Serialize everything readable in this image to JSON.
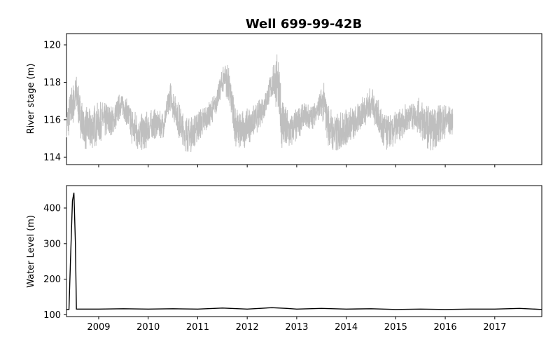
{
  "chart_data": {
    "title": "Well 699-99-42B",
    "type": "line",
    "shared_x": {
      "min": 2008.35,
      "max": 2017.95,
      "ticks": [
        2009,
        2010,
        2011,
        2012,
        2013,
        2014,
        2015,
        2016,
        2017
      ],
      "tick_labels": [
        "2009",
        "2010",
        "2011",
        "2012",
        "2013",
        "2014",
        "2015",
        "2016",
        "2017"
      ]
    },
    "panels": [
      {
        "ylabel": "River stage (m)",
        "ylim": [
          113.6,
          120.6
        ],
        "yticks": [
          114,
          116,
          118,
          120
        ],
        "ytick_labels": [
          "114",
          "116",
          "118",
          "120"
        ],
        "series": [
          {
            "color": "#bfbfbf",
            "style": "noisy-band",
            "x": [
              2008.35,
              2008.45,
              2008.55,
              2008.62,
              2008.7,
              2008.8,
              2008.95,
              2009.1,
              2009.3,
              2009.45,
              2009.55,
              2009.7,
              2009.85,
              2010.0,
              2010.15,
              2010.3,
              2010.45,
              2010.55,
              2010.7,
              2010.85,
              2011.0,
              2011.2,
              2011.35,
              2011.45,
              2011.55,
              2011.65,
              2011.75,
              2011.85,
              2012.0,
              2012.2,
              2012.35,
              2012.5,
              2012.6,
              2012.7,
              2012.85,
              2013.0,
              2013.15,
              2013.3,
              2013.45,
              2013.55,
              2013.65,
              2013.8,
              2014.0,
              2014.2,
              2014.35,
              2014.5,
              2014.6,
              2014.75,
              2014.9,
              2015.1,
              2015.3,
              2015.45,
              2015.6,
              2015.75,
              2015.9,
              2016.05,
              2016.15
            ],
            "low": [
              114.8,
              115.4,
              116.4,
              115.2,
              114.4,
              114.3,
              114.6,
              115.0,
              115.2,
              116.2,
              115.8,
              114.4,
              114.3,
              114.5,
              115.0,
              115.0,
              116.5,
              115.6,
              114.3,
              114.2,
              114.8,
              115.4,
              116.1,
              117.0,
              117.5,
              116.4,
              114.6,
              114.3,
              114.6,
              115.3,
              116.0,
              117.2,
              116.5,
              114.4,
              114.3,
              114.8,
              115.5,
              115.4,
              116.0,
              115.8,
              114.4,
              114.2,
              114.6,
              115.0,
              115.6,
              116.0,
              115.5,
              114.3,
              114.3,
              114.9,
              115.5,
              115.2,
              114.5,
              114.3,
              114.8,
              115.1,
              115.2
            ],
            "high": [
              116.5,
              117.8,
              118.4,
              117.5,
              116.8,
              116.6,
              116.9,
              117.0,
              116.7,
              117.6,
              117.2,
              116.6,
              116.3,
              116.5,
              116.6,
              116.4,
              118.0,
              117.4,
              116.4,
              116.1,
              116.5,
              116.9,
              117.4,
              118.2,
              119.4,
              118.6,
              116.9,
              116.5,
              116.6,
              116.9,
              117.6,
              118.6,
              119.8,
              117.5,
              116.4,
              116.6,
              116.9,
              116.8,
              117.4,
              118.0,
              116.8,
              116.3,
              116.6,
              116.8,
              117.3,
              117.8,
              117.4,
              116.4,
              116.3,
              116.6,
              117.1,
              117.2,
              116.9,
              116.6,
              116.9,
              116.8,
              116.6
            ]
          }
        ]
      },
      {
        "ylabel": "Water Level (m)",
        "ylim": [
          95,
          463
        ],
        "yticks": [
          100,
          200,
          300,
          400
        ],
        "ytick_labels": [
          "100",
          "200",
          "300",
          "400"
        ],
        "series": [
          {
            "color": "#000000",
            "style": "line",
            "x": [
              2008.35,
              2008.4,
              2008.43,
              2008.47,
              2008.5,
              2008.53,
              2008.55,
              2008.6,
              2009.0,
              2009.5,
              2010.0,
              2010.5,
              2011.0,
              2011.5,
              2012.0,
              2012.5,
              2012.8,
              2013.0,
              2013.5,
              2014.0,
              2014.5,
              2015.0,
              2015.5,
              2016.0,
              2016.5,
              2017.0,
              2017.5,
              2017.95
            ],
            "y": [
              115,
              115,
              250,
              420,
              443,
              300,
              116,
              116,
              116,
              117,
              116,
              117,
              116,
              119,
              116,
              120,
              118,
              116,
              118,
              116,
              117,
              115,
              116,
              115,
              116,
              116,
              118,
              115
            ]
          }
        ]
      }
    ]
  }
}
